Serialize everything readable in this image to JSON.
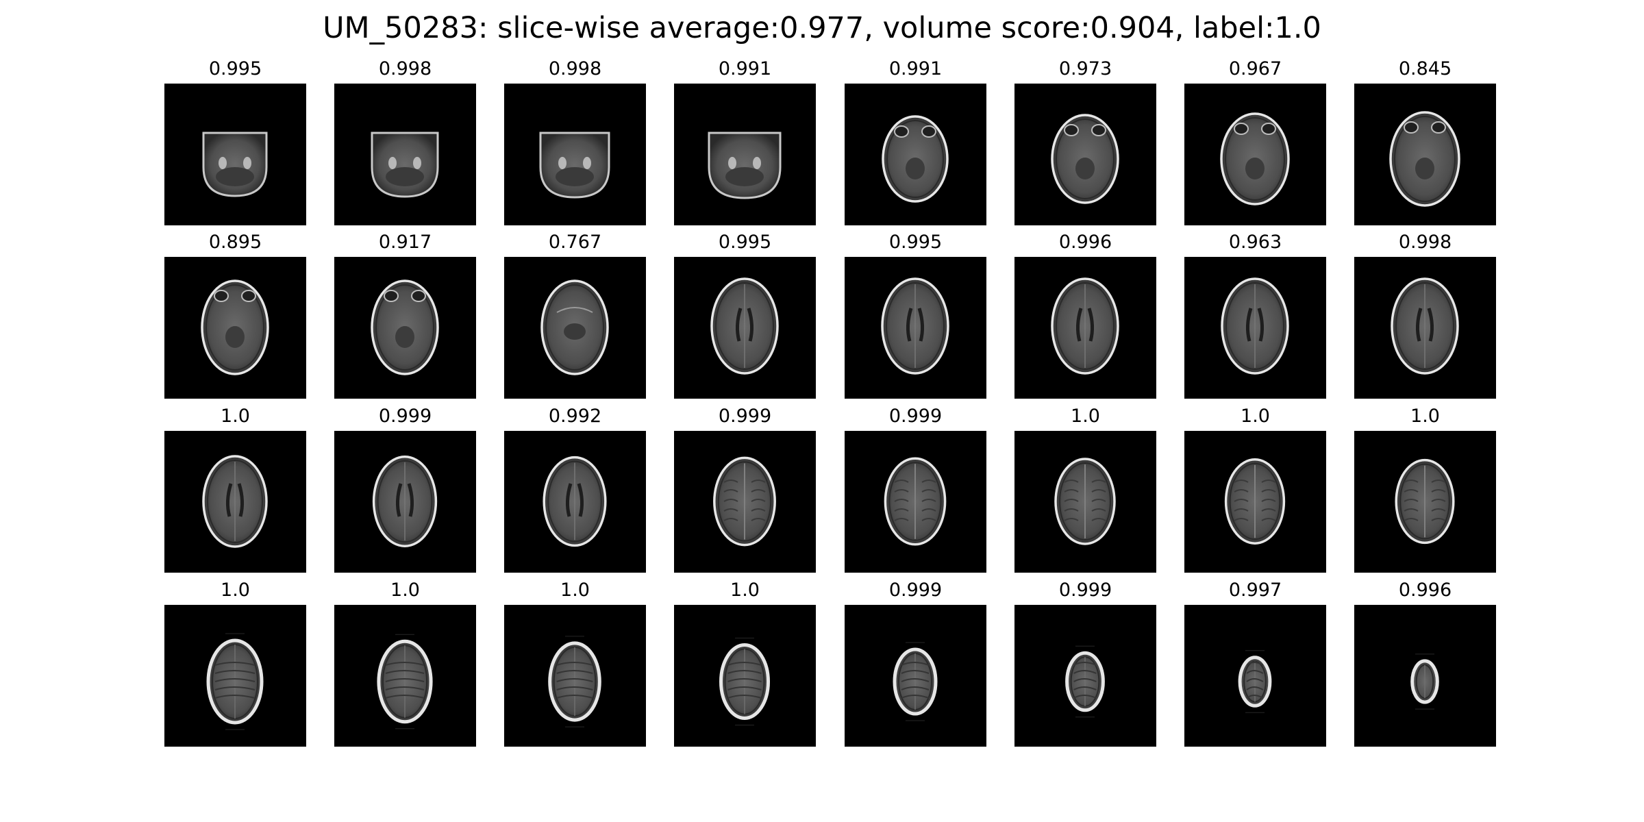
{
  "title": "UM_50283: slice-wise average:0.977, volume score:0.904, label:1.0",
  "colormap": "gray",
  "background": "#ffffff",
  "slices": [
    {
      "score": "0.995",
      "image": "axial-mri-slice-skull-base"
    },
    {
      "score": "0.998",
      "image": "axial-mri-slice-skull-base"
    },
    {
      "score": "0.998",
      "image": "axial-mri-slice-skull-base"
    },
    {
      "score": "0.991",
      "image": "axial-mri-slice-skull-base"
    },
    {
      "score": "0.991",
      "image": "axial-mri-slice-orbits"
    },
    {
      "score": "0.973",
      "image": "axial-mri-slice-orbits"
    },
    {
      "score": "0.967",
      "image": "axial-mri-slice-orbits"
    },
    {
      "score": "0.845",
      "image": "axial-mri-slice-orbits"
    },
    {
      "score": "0.895",
      "image": "axial-mri-slice-orbits"
    },
    {
      "score": "0.917",
      "image": "axial-mri-slice-orbits"
    },
    {
      "score": "0.767",
      "image": "axial-mri-slice-midbrain"
    },
    {
      "score": "0.995",
      "image": "axial-mri-slice-ventricles"
    },
    {
      "score": "0.995",
      "image": "axial-mri-slice-ventricles"
    },
    {
      "score": "0.996",
      "image": "axial-mri-slice-ventricles"
    },
    {
      "score": "0.963",
      "image": "axial-mri-slice-ventricles"
    },
    {
      "score": "0.998",
      "image": "axial-mri-slice-ventricles"
    },
    {
      "score": "1.0",
      "image": "axial-mri-slice-ventricles"
    },
    {
      "score": "0.999",
      "image": "axial-mri-slice-ventricles"
    },
    {
      "score": "0.992",
      "image": "axial-mri-slice-ventricles"
    },
    {
      "score": "0.999",
      "image": "axial-mri-slice-upper-cerebrum"
    },
    {
      "score": "0.999",
      "image": "axial-mri-slice-upper-cerebrum"
    },
    {
      "score": "1.0",
      "image": "axial-mri-slice-upper-cerebrum"
    },
    {
      "score": "1.0",
      "image": "axial-mri-slice-upper-cerebrum"
    },
    {
      "score": "1.0",
      "image": "axial-mri-slice-upper-cerebrum"
    },
    {
      "score": "1.0",
      "image": "axial-mri-slice-vertex"
    },
    {
      "score": "1.0",
      "image": "axial-mri-slice-vertex"
    },
    {
      "score": "1.0",
      "image": "axial-mri-slice-vertex"
    },
    {
      "score": "1.0",
      "image": "axial-mri-slice-vertex"
    },
    {
      "score": "0.999",
      "image": "axial-mri-slice-vertex"
    },
    {
      "score": "0.999",
      "image": "axial-mri-slice-vertex"
    },
    {
      "score": "0.997",
      "image": "axial-mri-slice-vertex"
    },
    {
      "score": "0.996",
      "image": "axial-mri-slice-vertex"
    }
  ]
}
